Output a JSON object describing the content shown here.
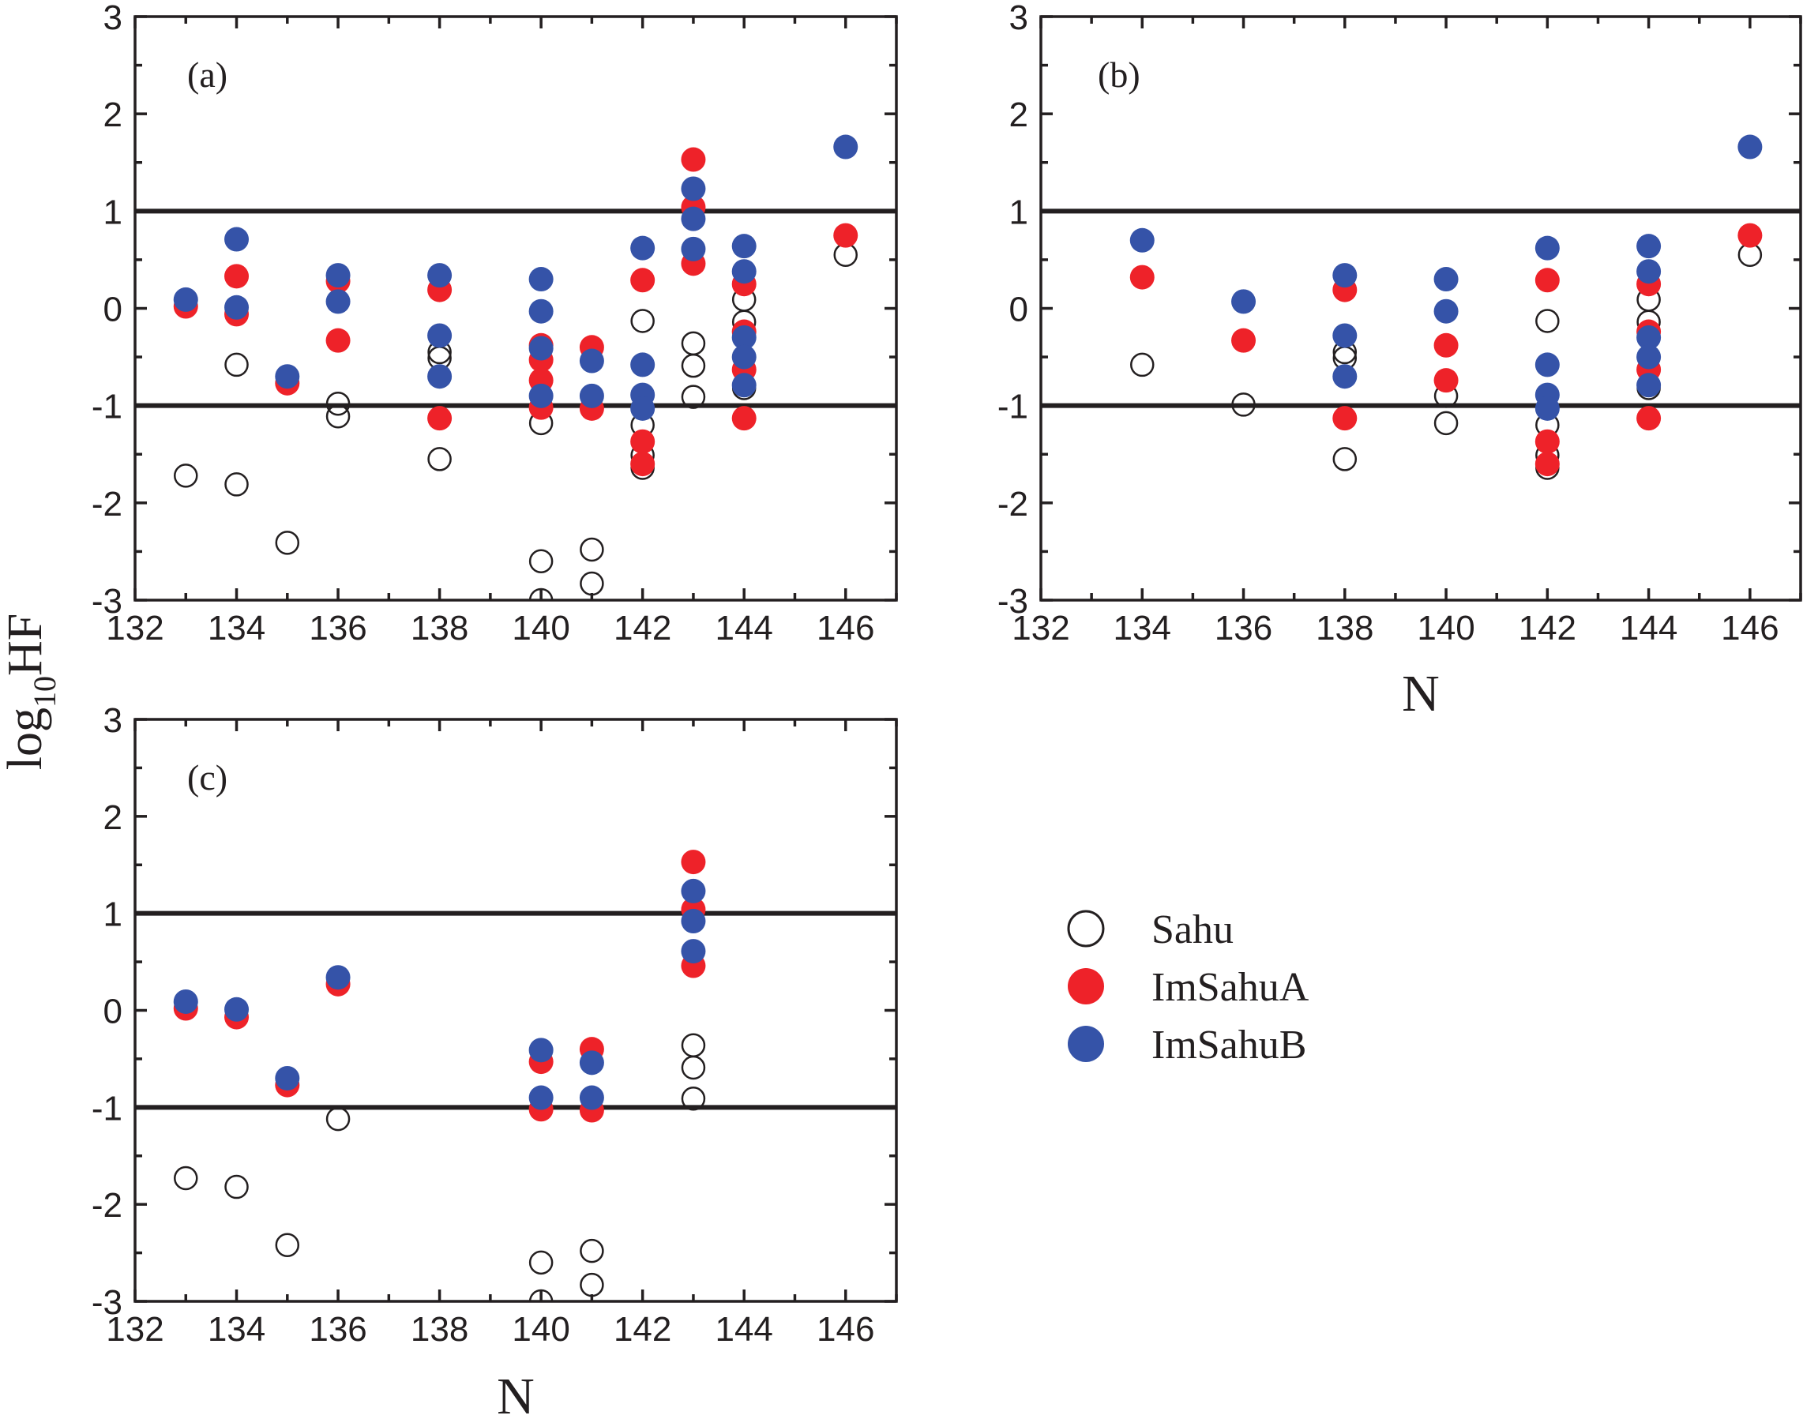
{
  "chart_data": {
    "type": "scatter",
    "ylabel": "log10HF",
    "ylabel_main": "log",
    "ylabel_sub": "10",
    "ylabel_tail": "HF",
    "legend": {
      "placement": "lower-right (empty quadrant)",
      "entries": [
        {
          "key": "sahu",
          "label": "Sahu",
          "style": "open",
          "color": "#231f20"
        },
        {
          "key": "imsahuA",
          "label": "ImSahuA",
          "style": "filled",
          "color": "#ee2229"
        },
        {
          "key": "imsahuB",
          "label": "ImSahuB",
          "style": "filled",
          "color": "#3553a8"
        }
      ]
    },
    "panels": [
      {
        "id": "a",
        "label": "(a)",
        "xlabel": "",
        "xlim": [
          132,
          147
        ],
        "ylim": [
          -3,
          3
        ],
        "xticks_major": [
          132,
          134,
          136,
          138,
          140,
          142,
          144,
          146
        ],
        "xtick_labels": [
          "132",
          "134",
          "136",
          "138",
          "140",
          "142",
          "144",
          "146"
        ],
        "yticks_major": [
          -3,
          -2,
          -1,
          0,
          1,
          2,
          3
        ],
        "ytick_labels": [
          "-3",
          "-2",
          "-1",
          "0",
          "1",
          "2",
          "3"
        ],
        "reference_lines": [
          1,
          -1
        ],
        "series": {
          "sahu": [
            [
              133,
              -1.72
            ],
            [
              134,
              -0.58
            ],
            [
              134,
              -1.81
            ],
            [
              135,
              -2.41
            ],
            [
              136,
              -0.98
            ],
            [
              136,
              -1.11
            ],
            [
              138,
              -0.45
            ],
            [
              138,
              -0.51
            ],
            [
              138,
              -1.55
            ],
            [
              140,
              -1.18
            ],
            [
              140,
              -2.6
            ],
            [
              140,
              -3.0
            ],
            [
              141,
              -2.48
            ],
            [
              141,
              -2.83
            ],
            [
              142,
              -0.13
            ],
            [
              142,
              -1.2
            ],
            [
              142,
              -1.51
            ],
            [
              142,
              -1.64
            ],
            [
              143,
              -0.36
            ],
            [
              143,
              -0.59
            ],
            [
              143,
              -0.91
            ],
            [
              144,
              0.09
            ],
            [
              144,
              -0.14
            ],
            [
              144,
              -0.82
            ],
            [
              146,
              0.55
            ]
          ],
          "imsahuA": [
            [
              133,
              0.02
            ],
            [
              134,
              0.33
            ],
            [
              134,
              -0.06
            ],
            [
              135,
              -0.77
            ],
            [
              136,
              0.28
            ],
            [
              136,
              -0.33
            ],
            [
              138,
              0.19
            ],
            [
              138,
              -1.13
            ],
            [
              140,
              -0.38
            ],
            [
              140,
              -0.53
            ],
            [
              140,
              -0.74
            ],
            [
              140,
              -1.02
            ],
            [
              141,
              -0.4
            ],
            [
              141,
              -1.03
            ],
            [
              142,
              0.29
            ],
            [
              142,
              -1.37
            ],
            [
              142,
              -1.6
            ],
            [
              143,
              1.53
            ],
            [
              143,
              1.04
            ],
            [
              143,
              0.46
            ],
            [
              144,
              0.25
            ],
            [
              144,
              -0.24
            ],
            [
              144,
              -0.63
            ],
            [
              144,
              -1.13
            ],
            [
              146,
              0.75
            ]
          ],
          "imsahuB": [
            [
              133,
              0.09
            ],
            [
              134,
              0.71
            ],
            [
              134,
              0.01
            ],
            [
              135,
              -0.7
            ],
            [
              136,
              0.34
            ],
            [
              136,
              0.07
            ],
            [
              138,
              0.34
            ],
            [
              138,
              -0.28
            ],
            [
              138,
              -0.7
            ],
            [
              140,
              0.3
            ],
            [
              140,
              -0.03
            ],
            [
              140,
              -0.41
            ],
            [
              140,
              -0.9
            ],
            [
              141,
              -0.54
            ],
            [
              141,
              -0.9
            ],
            [
              142,
              0.62
            ],
            [
              142,
              -0.58
            ],
            [
              142,
              -0.89
            ],
            [
              142,
              -1.03
            ],
            [
              143,
              1.23
            ],
            [
              143,
              0.92
            ],
            [
              143,
              0.61
            ],
            [
              144,
              0.64
            ],
            [
              144,
              0.38
            ],
            [
              144,
              -0.3
            ],
            [
              144,
              -0.5
            ],
            [
              144,
              -0.79
            ],
            [
              146,
              1.66
            ]
          ]
        }
      },
      {
        "id": "b",
        "label": "(b)",
        "xlabel": "N",
        "xlim": [
          132,
          147
        ],
        "ylim": [
          -3,
          3
        ],
        "xticks_major": [
          132,
          134,
          136,
          138,
          140,
          142,
          144,
          146
        ],
        "xtick_labels": [
          "132",
          "134",
          "136",
          "138",
          "140",
          "142",
          "144",
          "146"
        ],
        "yticks_major": [
          -3,
          -2,
          -1,
          0,
          1,
          2,
          3
        ],
        "ytick_labels": [
          "-3",
          "-2",
          "-1",
          "0",
          "1",
          "2",
          "3"
        ],
        "reference_lines": [
          1,
          -1
        ],
        "series": {
          "sahu": [
            [
              134,
              -0.58
            ],
            [
              136,
              -0.99
            ],
            [
              138,
              -0.45
            ],
            [
              138,
              -0.51
            ],
            [
              138,
              -1.55
            ],
            [
              140,
              -0.9
            ],
            [
              140,
              -1.18
            ],
            [
              142,
              -0.13
            ],
            [
              142,
              -1.2
            ],
            [
              142,
              -1.51
            ],
            [
              142,
              -1.64
            ],
            [
              144,
              0.09
            ],
            [
              144,
              -0.14
            ],
            [
              144,
              -0.82
            ],
            [
              146,
              0.55
            ]
          ],
          "imsahuA": [
            [
              134,
              0.32
            ],
            [
              136,
              -0.33
            ],
            [
              138,
              0.19
            ],
            [
              138,
              -1.13
            ],
            [
              140,
              -0.38
            ],
            [
              140,
              -0.74
            ],
            [
              142,
              0.29
            ],
            [
              142,
              -1.37
            ],
            [
              142,
              -1.6
            ],
            [
              144,
              0.25
            ],
            [
              144,
              -0.24
            ],
            [
              144,
              -0.63
            ],
            [
              144,
              -1.13
            ],
            [
              146,
              0.75
            ]
          ],
          "imsahuB": [
            [
              134,
              0.7
            ],
            [
              136,
              0.07
            ],
            [
              138,
              0.34
            ],
            [
              138,
              -0.28
            ],
            [
              138,
              -0.7
            ],
            [
              140,
              0.3
            ],
            [
              140,
              -0.03
            ],
            [
              142,
              0.62
            ],
            [
              142,
              -0.58
            ],
            [
              142,
              -0.89
            ],
            [
              142,
              -1.03
            ],
            [
              144,
              0.64
            ],
            [
              144,
              0.38
            ],
            [
              144,
              -0.3
            ],
            [
              144,
              -0.5
            ],
            [
              144,
              -0.79
            ],
            [
              146,
              1.66
            ]
          ]
        }
      },
      {
        "id": "c",
        "label": "(c)",
        "xlabel": "N",
        "xlim": [
          132,
          147
        ],
        "ylim": [
          -3,
          3
        ],
        "xticks_major": [
          132,
          134,
          136,
          138,
          140,
          142,
          144,
          146
        ],
        "xtick_labels": [
          "132",
          "134",
          "136",
          "138",
          "140",
          "142",
          "144",
          "146"
        ],
        "yticks_major": [
          -3,
          -2,
          -1,
          0,
          1,
          2,
          3
        ],
        "ytick_labels": [
          "-3",
          "-2",
          "-1",
          "0",
          "1",
          "2",
          "3"
        ],
        "reference_lines": [
          1,
          -1
        ],
        "series": {
          "sahu": [
            [
              133,
              -1.73
            ],
            [
              134,
              -1.82
            ],
            [
              135,
              -2.42
            ],
            [
              136,
              -1.12
            ],
            [
              140,
              -2.6
            ],
            [
              140,
              -3.0
            ],
            [
              141,
              -2.48
            ],
            [
              141,
              -2.83
            ],
            [
              143,
              -0.36
            ],
            [
              143,
              -0.59
            ],
            [
              143,
              -0.91
            ]
          ],
          "imsahuA": [
            [
              133,
              0.02
            ],
            [
              134,
              -0.07
            ],
            [
              135,
              -0.77
            ],
            [
              136,
              0.27
            ],
            [
              140,
              -0.53
            ],
            [
              140,
              -1.02
            ],
            [
              141,
              -0.4
            ],
            [
              141,
              -1.03
            ],
            [
              143,
              1.53
            ],
            [
              143,
              1.04
            ],
            [
              143,
              0.46
            ]
          ],
          "imsahuB": [
            [
              133,
              0.09
            ],
            [
              134,
              0.01
            ],
            [
              135,
              -0.7
            ],
            [
              136,
              0.34
            ],
            [
              140,
              -0.41
            ],
            [
              140,
              -0.9
            ],
            [
              141,
              -0.54
            ],
            [
              141,
              -0.9
            ],
            [
              143,
              1.23
            ],
            [
              143,
              0.92
            ],
            [
              143,
              0.61
            ]
          ]
        }
      }
    ]
  }
}
